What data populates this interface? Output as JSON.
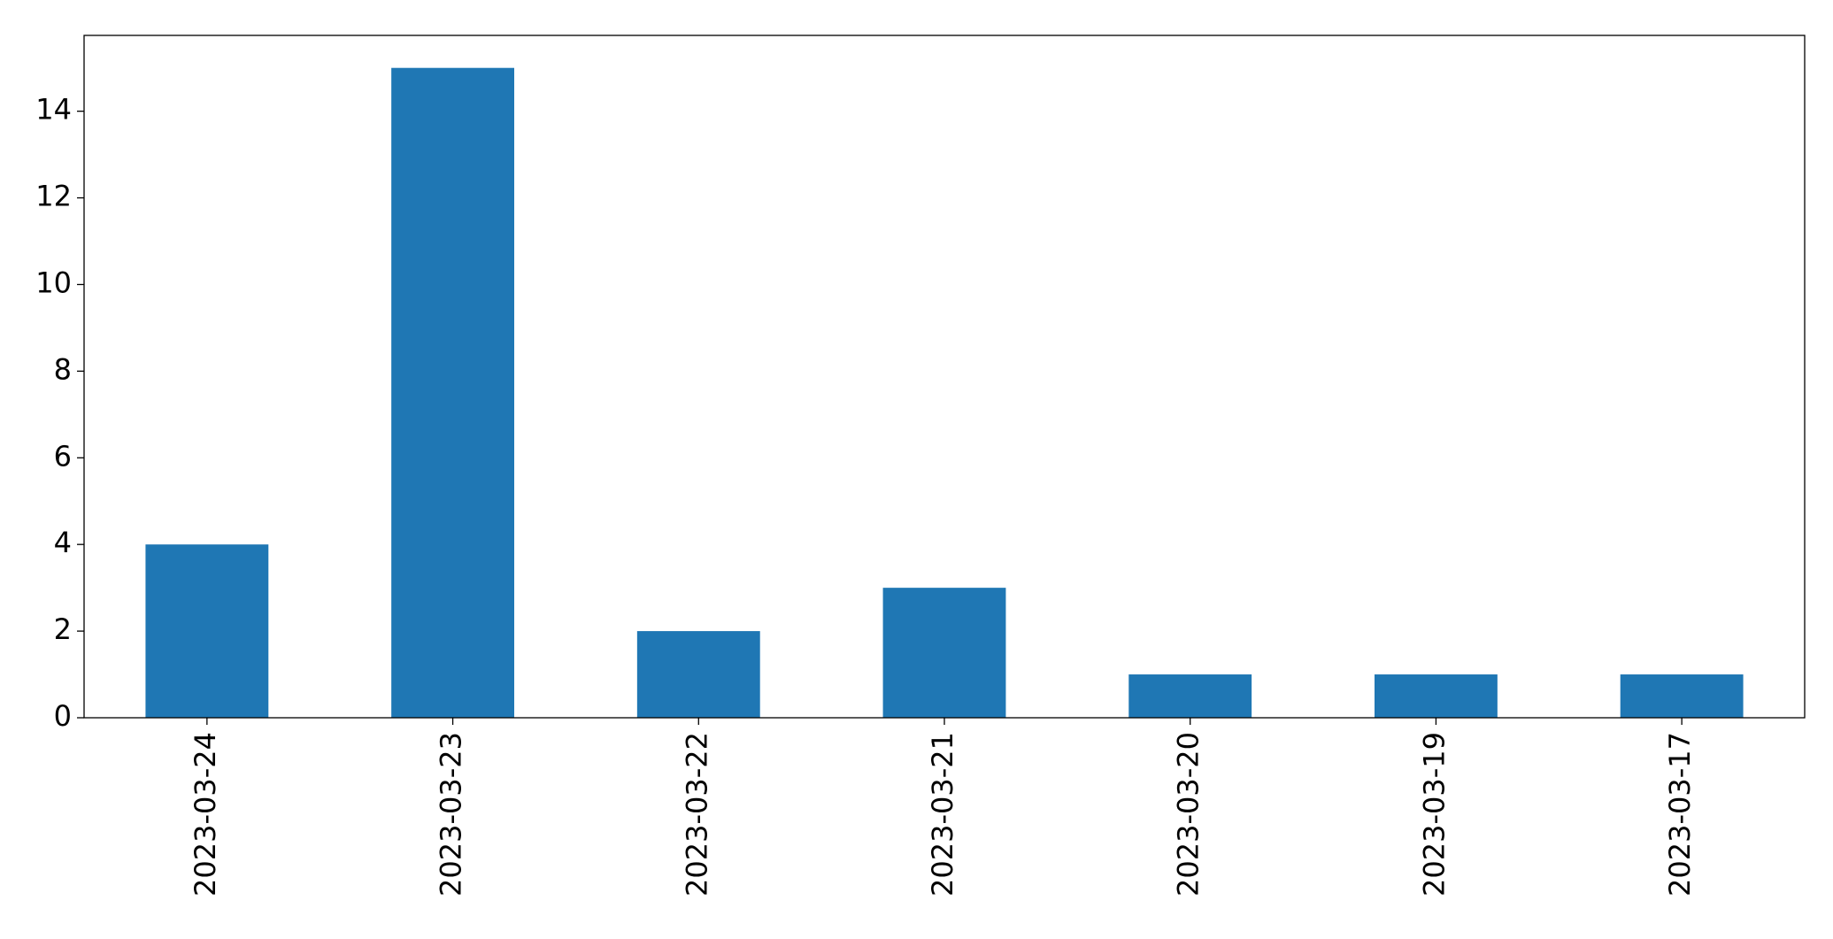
{
  "chart_data": {
    "type": "bar",
    "title": "",
    "xlabel": "",
    "ylabel": "",
    "categories": [
      "2023-03-24",
      "2023-03-23",
      "2023-03-22",
      "2023-03-21",
      "2023-03-20",
      "2023-03-19",
      "2023-03-17"
    ],
    "values": [
      4,
      15,
      2,
      3,
      1,
      1,
      1
    ],
    "ylim": [
      0,
      15.75
    ],
    "yticks": [
      0,
      2,
      4,
      6,
      8,
      10,
      12,
      14
    ],
    "grid": false,
    "legend": "none",
    "bar_color": "#1f77b4",
    "xtick_rotation": "vertical"
  }
}
